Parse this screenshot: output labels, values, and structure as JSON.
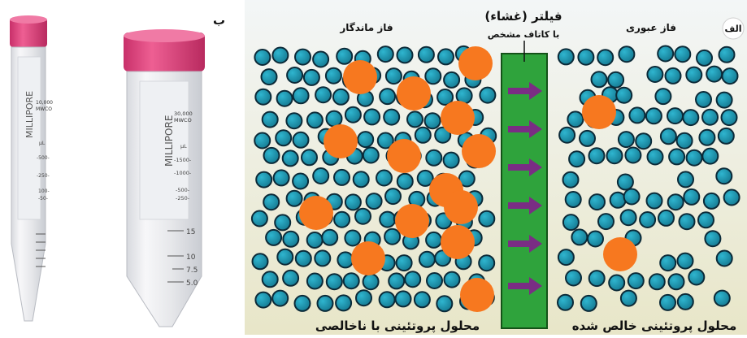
{
  "panel_b": {
    "letter": "ب",
    "tube_small": {
      "brand": "MILLIPORE",
      "mwco_value": "10,000",
      "mwco_label": "MWCO",
      "unit": "µL",
      "ticks": [
        "-500-",
        "-250-",
        "100-",
        "-50-"
      ]
    },
    "tube_large": {
      "brand": "MILLIPORE",
      "mwco_value": "30,000",
      "mwco_label": "MWCO",
      "unit": "µL",
      "inner_ticks": [
        "-1500-",
        "-1000-",
        "-500-",
        "-250-"
      ],
      "outer_ticks": [
        "15",
        "10",
        "7.5",
        "5.0"
      ]
    },
    "colors": {
      "cap": "#e0457b",
      "cap_top": "#ee6f9c",
      "tube_body": "#e9eaee"
    }
  },
  "panel_alef": {
    "letter": "الف",
    "label_left_phase": "فاز ماندگار",
    "label_right_phase": "فاز عبوری",
    "filter_title": "فیلتر (غشاء)",
    "filter_subtitle": "با کاتاف مشخص",
    "caption_left": "محلول پروتئینی با ناخالصی",
    "caption_right": "محلول پروتئینی خالص شده",
    "colors": {
      "small_particle": "#1d8fa8",
      "small_particle_edge": "#0b2a38",
      "large_particle": "#f7781f",
      "filter": "#2fa33c",
      "filter_edge": "#145218",
      "arrow": "#7a2d84",
      "background_top": "#f3f6f7",
      "background_bottom": "#e8e6c8"
    }
  }
}
